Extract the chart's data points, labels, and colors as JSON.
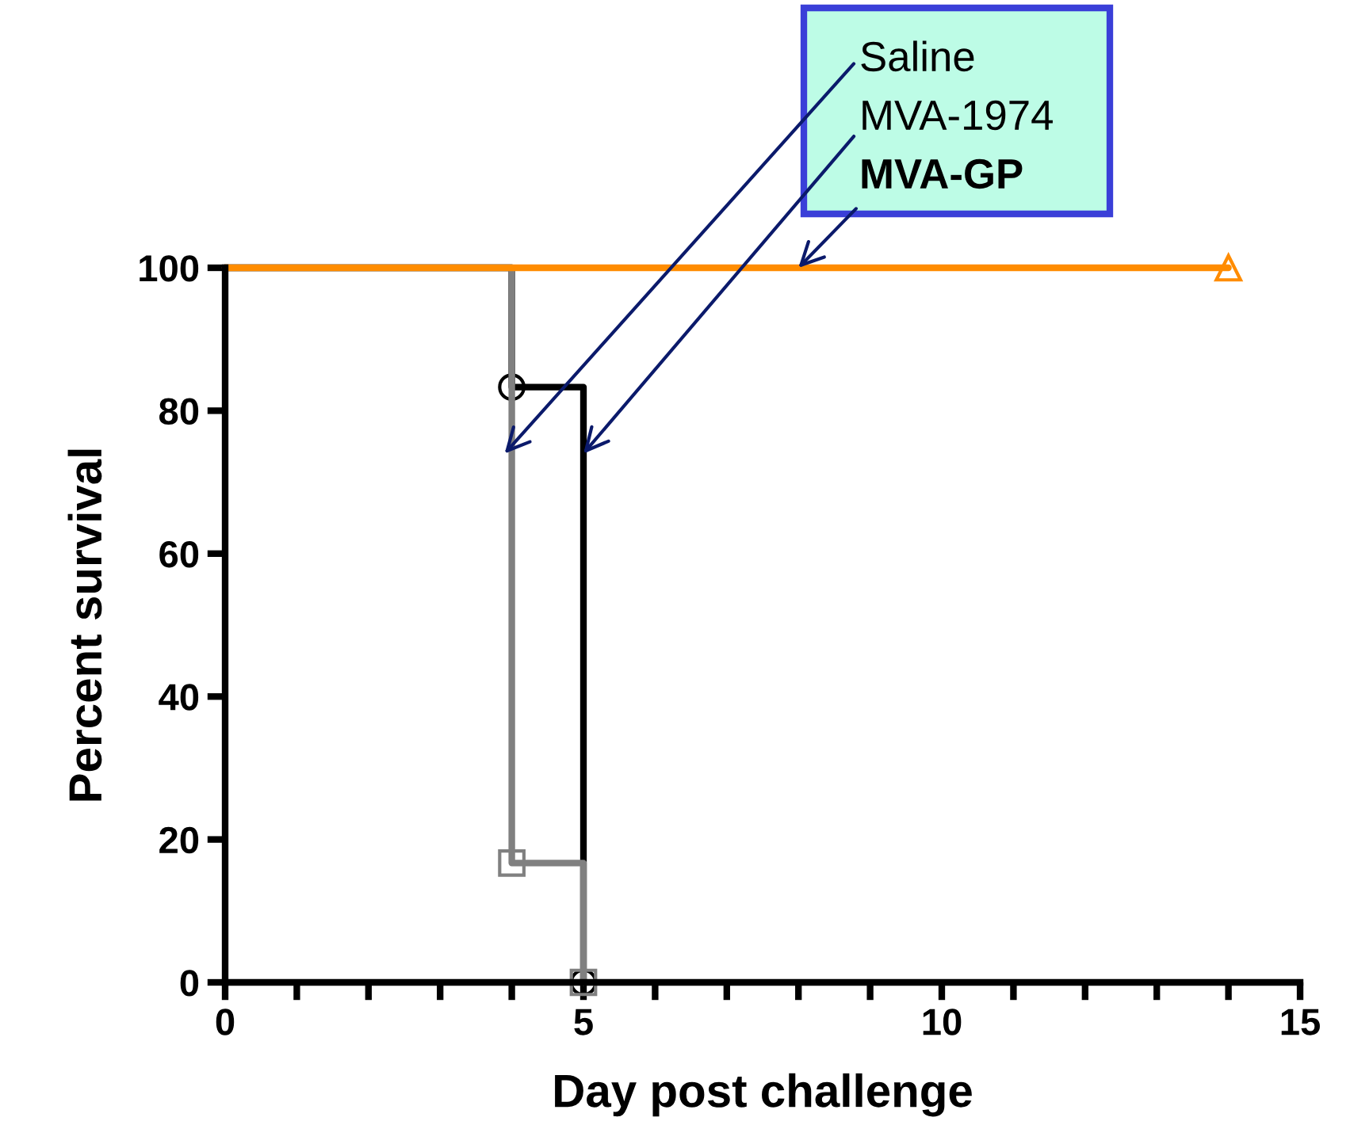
{
  "chart_data": {
    "type": "step",
    "xlabel": "Day post challenge",
    "ylabel": "Percent survival",
    "series": [
      {
        "color": "#000000",
        "x": [
          0,
          4,
          5
        ],
        "values": [
          100,
          83.3,
          0
        ],
        "marker": "circle"
      },
      {
        "color": "#808080",
        "x": [
          0,
          4,
          5
        ],
        "values": [
          100,
          16.7,
          0
        ],
        "marker": "square"
      },
      {
        "color": "#ff8c00",
        "x": [
          0,
          14
        ],
        "values": [
          100,
          100
        ],
        "marker": "triangle"
      }
    ],
    "xlim": [
      0,
      15
    ],
    "ylim": [
      0,
      100
    ],
    "xticks": [
      0,
      {
        "value": 1,
        "label": null
      },
      {
        "value": 2,
        "label": null
      },
      {
        "value": 3,
        "label": null
      },
      {
        "value": 4,
        "label": null
      },
      5,
      {
        "value": 6,
        "label": null
      },
      {
        "value": 7,
        "label": null
      },
      {
        "value": 8,
        "label": null
      },
      {
        "value": 9,
        "label": null
      },
      10,
      {
        "value": 11,
        "label": null
      },
      {
        "value": 12,
        "label": null
      },
      {
        "value": 13,
        "label": null
      },
      {
        "value": 14,
        "label": null
      },
      15
    ],
    "yticks": [
      0,
      20,
      40,
      60,
      80,
      100
    ],
    "grid": false,
    "legend": false,
    "annotations": [
      {
        "text": "Saline",
        "x": 3.9,
        "y": 74
      },
      {
        "text": "MVA-1974",
        "x": 5,
        "y": 74
      },
      {
        "text": "MVA-GP",
        "x": 8,
        "y": 100
      }
    ]
  }
}
